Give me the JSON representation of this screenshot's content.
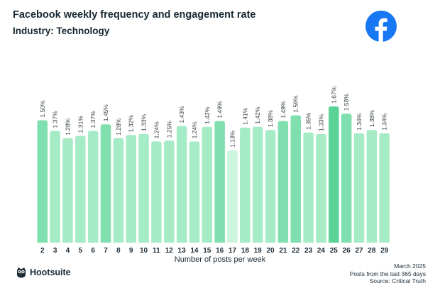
{
  "header": {
    "title": "Facebook weekly frequency and engagement rate",
    "subtitle": "Industry: Technology"
  },
  "icons": {
    "brand_logo": "facebook-logo-icon",
    "footer_logo": "hootsuite-owl-icon"
  },
  "colors": {
    "bar_default": "#a5ebc6",
    "bar_medium": "#7fdfae",
    "bar_strong": "#5cd396",
    "bar_lightest": "#cbf5dd",
    "facebook_blue": "#1877f2"
  },
  "chart_data": {
    "type": "bar",
    "title": "Facebook weekly frequency and engagement rate",
    "subtitle": "Industry: Technology",
    "xlabel": "Number of posts per week",
    "ylabel": "",
    "ylim": [
      0,
      1.67
    ],
    "grid": false,
    "categories": [
      "2",
      "3",
      "4",
      "5",
      "6",
      "7",
      "8",
      "9",
      "10",
      "11",
      "12",
      "13",
      "14",
      "15",
      "16",
      "17",
      "18",
      "19",
      "20",
      "21",
      "22",
      "23",
      "24",
      "25",
      "26",
      "27",
      "28",
      "29"
    ],
    "values": [
      1.5,
      1.37,
      1.28,
      1.31,
      1.37,
      1.45,
      1.28,
      1.32,
      1.33,
      1.24,
      1.25,
      1.43,
      1.24,
      1.42,
      1.49,
      1.13,
      1.41,
      1.42,
      1.38,
      1.49,
      1.56,
      1.35,
      1.33,
      1.67,
      1.58,
      1.34,
      1.38,
      1.34
    ],
    "data_labels": [
      "1.50%",
      "1.37%",
      "1.28%",
      "1.31%",
      "1.37%",
      "1.45%",
      "1.28%",
      "1.32%",
      "1.33%",
      "1.24%",
      "1.25%",
      "1.43%",
      "1.24%",
      "1.42%",
      "1.49%",
      "1.13%",
      "1.41%",
      "1.42%",
      "1.38%",
      "1.49%",
      "1.56%",
      "1.35%",
      "1.33%",
      "1.67%",
      "1.58%",
      "1.34%",
      "1.38%",
      "1.34%"
    ],
    "series": [
      {
        "name": "Engagement rate",
        "values": [
          1.5,
          1.37,
          1.28,
          1.31,
          1.37,
          1.45,
          1.28,
          1.32,
          1.33,
          1.24,
          1.25,
          1.43,
          1.24,
          1.42,
          1.49,
          1.13,
          1.41,
          1.42,
          1.38,
          1.49,
          1.56,
          1.35,
          1.33,
          1.67,
          1.58,
          1.34,
          1.38,
          1.34
        ]
      }
    ]
  },
  "footer": {
    "brand": "Hootsuite",
    "date": "March 2025",
    "period": "Posts from the last 365 days",
    "source": "Source: Critical Truth"
  }
}
